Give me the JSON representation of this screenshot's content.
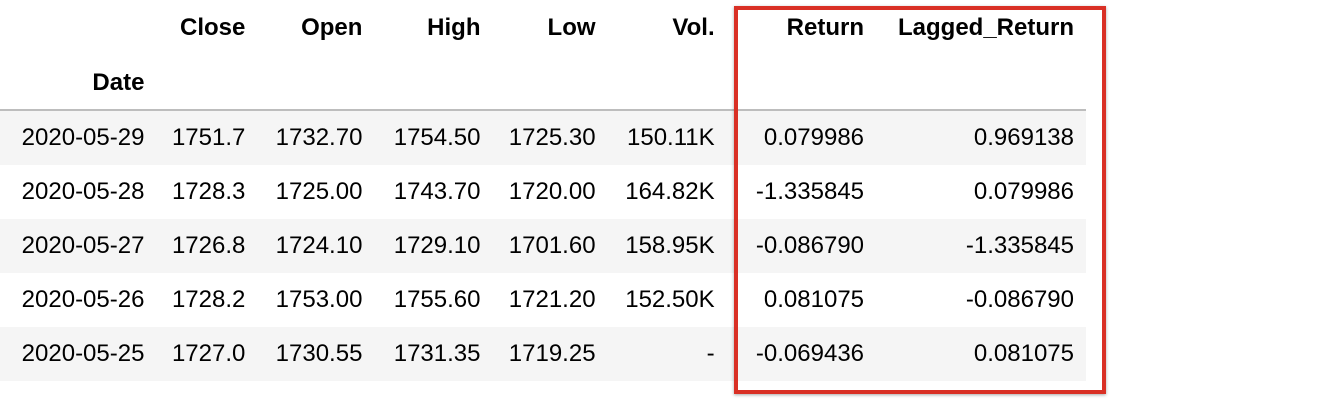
{
  "table": {
    "columns": [
      "Close",
      "Open",
      "High",
      "Low",
      "Vol.",
      "Return",
      "Lagged_Return"
    ],
    "index_name": "Date",
    "rows": [
      {
        "date": "2020-05-29",
        "close": "1751.7",
        "open": "1732.70",
        "high": "1754.50",
        "low": "1725.30",
        "vol": "150.11K",
        "return": "0.079986",
        "lagged_return": "0.969138"
      },
      {
        "date": "2020-05-28",
        "close": "1728.3",
        "open": "1725.00",
        "high": "1743.70",
        "low": "1720.00",
        "vol": "164.82K",
        "return": "-1.335845",
        "lagged_return": "0.079986"
      },
      {
        "date": "2020-05-27",
        "close": "1726.8",
        "open": "1724.10",
        "high": "1729.10",
        "low": "1701.60",
        "vol": "158.95K",
        "return": "-0.086790",
        "lagged_return": "-1.335845"
      },
      {
        "date": "2020-05-26",
        "close": "1728.2",
        "open": "1753.00",
        "high": "1755.60",
        "low": "1721.20",
        "vol": "152.50K",
        "return": "0.081075",
        "lagged_return": "-0.086790"
      },
      {
        "date": "2020-05-25",
        "close": "1727.0",
        "open": "1730.55",
        "high": "1731.35",
        "low": "1719.25",
        "vol": "-",
        "return": "-0.069436",
        "lagged_return": "0.081075"
      }
    ]
  },
  "highlight": {
    "color": "#d93025",
    "columns": [
      "Return",
      "Lagged_Return"
    ]
  },
  "colors": {
    "stripe": "#f5f5f5",
    "header_rule": "#bdbdbd"
  }
}
